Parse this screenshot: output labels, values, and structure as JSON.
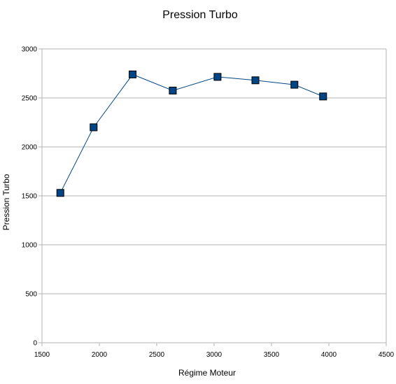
{
  "chart_data": {
    "type": "line",
    "title": "Pression Turbo",
    "xlabel": "Régime Moteur",
    "ylabel": "Pression Turbo",
    "xlim": [
      1500,
      4500
    ],
    "ylim": [
      0,
      3000
    ],
    "xticks": [
      1500,
      2000,
      2500,
      3000,
      3500,
      4000,
      4500
    ],
    "yticks": [
      0,
      500,
      1000,
      1500,
      2000,
      2500,
      3000
    ],
    "grid": "horizontal",
    "legend": "none",
    "series": [
      {
        "color": "#004586",
        "marker": "square",
        "points": [
          {
            "x": 1660,
            "y": 1530
          },
          {
            "x": 1950,
            "y": 2200
          },
          {
            "x": 2290,
            "y": 2740
          },
          {
            "x": 2640,
            "y": 2575
          },
          {
            "x": 3030,
            "y": 2715
          },
          {
            "x": 3360,
            "y": 2680
          },
          {
            "x": 3700,
            "y": 2635
          },
          {
            "x": 3950,
            "y": 2515
          }
        ]
      }
    ]
  }
}
